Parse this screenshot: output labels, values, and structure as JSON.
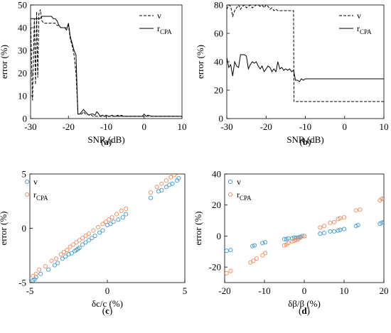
{
  "chart_data": [
    {
      "panel_label": "(a)",
      "type": "line",
      "xlabel": "SNR (dB)",
      "ylabel": "error (%)",
      "xlim": [
        -30,
        10
      ],
      "ylim": [
        0,
        50
      ],
      "xticks": [
        -30,
        -20,
        -10,
        0,
        10
      ],
      "yticks": [
        0,
        10,
        20,
        30,
        40,
        50
      ],
      "grid": false,
      "legend_position": "top-right",
      "series": [
        {
          "name": "v",
          "style": "dashed",
          "color": "#000000",
          "x": [
            -30,
            -29.5,
            -29,
            -28.7,
            -28.4,
            -28.1,
            -27.8,
            -27.4,
            -27,
            -26.5,
            -26,
            -25.5,
            -25,
            -24.5,
            -24,
            -23.5,
            -23,
            -22.5,
            -22,
            -21.5,
            -21,
            -20.5,
            -20,
            -19.5,
            -19,
            -18.5,
            -18,
            -17.5,
            -17,
            -16.5,
            -16,
            -15.5,
            -15,
            -14.5,
            -14,
            -13.5,
            -13,
            -12.5,
            -12,
            -11.5,
            -11,
            -10.5,
            -10,
            -9,
            -8,
            -7,
            -6,
            -5,
            -4,
            -3,
            -2,
            -1,
            0,
            1,
            2,
            4,
            6,
            8,
            10
          ],
          "y": [
            44,
            8,
            44,
            15,
            47,
            18,
            46,
            48,
            43,
            42,
            42,
            42,
            42,
            42,
            42,
            42,
            41,
            41,
            40,
            40,
            40,
            40,
            41,
            35,
            32,
            28,
            20,
            2,
            2,
            2,
            3,
            2,
            2,
            1.5,
            1.5,
            1,
            1,
            1,
            1,
            1,
            1,
            1,
            1,
            1,
            1,
            1,
            1,
            1,
            1,
            1,
            1,
            1,
            1,
            1,
            1,
            1,
            1,
            1,
            1
          ]
        },
        {
          "name": "r_CPA",
          "style": "solid",
          "color": "#000000",
          "x": [
            -30,
            -29.5,
            -29,
            -28.5,
            -28,
            -27.5,
            -27,
            -26.5,
            -26,
            -25.5,
            -25,
            -24.5,
            -24,
            -23.5,
            -23,
            -22.5,
            -22,
            -21.5,
            -21,
            -20.5,
            -20,
            -19.5,
            -19,
            -18.5,
            -18,
            -17.5,
            -17,
            -16.5,
            -16,
            -15.5,
            -15,
            -14.5,
            -14,
            -13.5,
            -13,
            -12.5,
            -12,
            -11.5,
            -11,
            -10.5,
            -10,
            -9.5,
            -9,
            -8.5,
            -8,
            -7.5,
            -7,
            -6.5,
            -6,
            -5.5,
            -5,
            -4.5,
            -4,
            -3,
            -2,
            -1,
            -0.5,
            0,
            0.5,
            1,
            2,
            4,
            6,
            8,
            10
          ],
          "y": [
            44,
            44,
            44,
            44,
            44,
            44,
            45,
            45,
            45,
            45,
            45,
            45,
            44,
            44,
            43,
            41,
            40,
            40,
            40,
            39,
            42,
            36,
            33,
            30,
            28,
            2,
            2,
            3,
            4,
            3,
            2,
            1.5,
            2,
            2,
            1.5,
            3,
            2,
            1,
            1.5,
            1,
            1.5,
            1,
            1,
            1.5,
            1,
            1,
            1.5,
            1,
            1.5,
            1,
            1,
            1,
            1,
            1,
            1,
            1,
            1,
            2,
            1,
            1.5,
            1,
            1,
            1,
            1,
            1
          ]
        }
      ]
    },
    {
      "panel_label": "(b)",
      "type": "line",
      "xlabel": "SNR (dB)",
      "ylabel": "error (%)",
      "xlim": [
        -30,
        10
      ],
      "ylim": [
        0,
        80
      ],
      "xticks": [
        -30,
        -20,
        -10,
        0,
        10
      ],
      "yticks": [
        0,
        20,
        40,
        60,
        80
      ],
      "grid": false,
      "legend_position": "top-right",
      "series": [
        {
          "name": "v",
          "style": "dashed",
          "color": "#000000",
          "x": [
            -30,
            -29.5,
            -29,
            -28.5,
            -28,
            -27.5,
            -27,
            -26.5,
            -26,
            -25.5,
            -25,
            -24.5,
            -24,
            -23.5,
            -23,
            -22.5,
            -22,
            -21.5,
            -21,
            -20.5,
            -20,
            -19.5,
            -19,
            -18.5,
            -18,
            -17.5,
            -17,
            -16.5,
            -16,
            -15.5,
            -15,
            -14.5,
            -14,
            -13.5,
            -13,
            -12.9,
            -12,
            -10,
            -5,
            0,
            5,
            10
          ],
          "y": [
            77,
            80,
            79,
            72,
            76,
            78,
            80,
            77,
            79,
            80,
            78,
            79,
            80,
            78,
            79,
            80,
            80,
            79,
            80,
            78,
            80,
            79,
            77,
            78,
            76,
            77,
            76,
            76,
            76,
            76,
            76,
            76,
            76,
            76,
            76,
            12,
            12,
            12,
            12,
            12,
            12,
            12
          ]
        },
        {
          "name": "r_CPA",
          "style": "solid",
          "color": "#000000",
          "x": [
            -30,
            -29.5,
            -29,
            -28.5,
            -28,
            -27.5,
            -27,
            -26.5,
            -26,
            -25.5,
            -25,
            -24.5,
            -24,
            -23.5,
            -23,
            -22.5,
            -22,
            -21.5,
            -21,
            -20.5,
            -20,
            -19.5,
            -19,
            -18.5,
            -18,
            -17.5,
            -17,
            -16.5,
            -16,
            -15.5,
            -15,
            -14.5,
            -14,
            -13.5,
            -13,
            -12.5,
            -12,
            -11.5,
            -11,
            -10.5,
            -10,
            -9,
            -8,
            -6,
            -4,
            -2,
            0,
            2,
            4,
            6,
            8,
            10
          ],
          "y": [
            43,
            36,
            38,
            30,
            40,
            37,
            36,
            45,
            45,
            45,
            44,
            35,
            38,
            40,
            39,
            40,
            37,
            35,
            37,
            33,
            35,
            37,
            36,
            33,
            35,
            33,
            40,
            35,
            36,
            34,
            35,
            34,
            35,
            33,
            34,
            27,
            27,
            26,
            28,
            27,
            28,
            28,
            28,
            28,
            28,
            28,
            28,
            28,
            28,
            28,
            28,
            28
          ]
        }
      ]
    },
    {
      "panel_label": "(c)",
      "type": "scatter",
      "xlabel": "δc/c (%)",
      "ylabel": "error (%)",
      "xlim": [
        -5,
        5
      ],
      "ylim": [
        -5,
        5
      ],
      "xticks": [
        -5,
        0,
        5
      ],
      "yticks": [
        -5,
        0,
        5
      ],
      "grid": false,
      "legend_position": "top-left",
      "series": [
        {
          "name": "v",
          "color": "#3d9ad1",
          "x": [
            -4.8,
            -4.7,
            -4.6,
            -4.3,
            -3.8,
            -3.4,
            -3.2,
            -2.9,
            -2.7,
            -2.5,
            -2.3,
            -2.1,
            -2.0,
            -1.9,
            -1.8,
            -1.6,
            -1.4,
            -1.2,
            -1.0,
            -0.8,
            -0.5,
            -0.3,
            0.0,
            0.2,
            0.4,
            0.7,
            1.0,
            1.2,
            2.8,
            3.3,
            3.5,
            3.8,
            4.0,
            4.2,
            4.5,
            4.6
          ],
          "y": [
            -4.8,
            -4.7,
            -4.5,
            -4.2,
            -3.8,
            -3.4,
            -3.2,
            -2.8,
            -2.6,
            -2.4,
            -2.3,
            -2.1,
            -2.0,
            -1.9,
            -1.8,
            -1.5,
            -1.3,
            -1.1,
            -0.9,
            -0.7,
            -0.4,
            -0.2,
            0.3,
            0.4,
            0.6,
            0.8,
            1.0,
            1.3,
            2.8,
            3.4,
            3.5,
            3.8,
            4.0,
            4.1,
            4.4,
            4.6
          ]
        },
        {
          "name": "r_CPA",
          "color": "#ee8a5a",
          "x": [
            -4.8,
            -4.6,
            -4.4,
            -4.0,
            -3.6,
            -3.3,
            -3.0,
            -2.8,
            -2.6,
            -2.4,
            -2.2,
            -2.0,
            -1.8,
            -1.6,
            -1.4,
            -1.2,
            -0.9,
            -0.6,
            -0.3,
            -0.1,
            0.1,
            0.3,
            0.6,
            0.9,
            1.2,
            2.8,
            3.2,
            3.5,
            3.8,
            4.1,
            4.3,
            4.5
          ],
          "y": [
            -4.4,
            -4.2,
            -3.8,
            -3.5,
            -3.0,
            -2.8,
            -2.4,
            -2.2,
            -2.0,
            -1.7,
            -1.5,
            -1.3,
            -1.1,
            -0.9,
            -0.7,
            -0.5,
            -0.2,
            0.1,
            0.4,
            0.6,
            0.8,
            1.0,
            1.3,
            1.6,
            1.8,
            3.3,
            3.8,
            4.1,
            4.4,
            4.7,
            4.9,
            5.1
          ]
        }
      ]
    },
    {
      "panel_label": "(d)",
      "type": "scatter",
      "xlabel": "δβ/β (%)",
      "ylabel": "error (%)",
      "xlim": [
        -20,
        20
      ],
      "ylim": [
        -30,
        40
      ],
      "xticks": [
        -20,
        -10,
        0,
        10,
        20
      ],
      "yticks": [
        -20,
        0,
        20,
        40
      ],
      "grid": false,
      "legend_position": "top-left",
      "series": [
        {
          "name": "v",
          "color": "#3d9ad1",
          "x": [
            -19.5,
            -18.5,
            -13,
            -12.5,
            -10.5,
            -9.8,
            -5,
            -4.5,
            -4,
            -3,
            -2.5,
            -2,
            -1.5,
            -1,
            -0.5,
            0,
            4,
            5,
            6.5,
            7.5,
            8.5,
            9,
            10,
            13,
            13.5,
            19,
            19.5,
            20
          ],
          "y": [
            -9.5,
            -9,
            -6.5,
            -6,
            -4.5,
            -4,
            -2,
            -2,
            -1.5,
            -1.5,
            -1,
            -1,
            -1,
            -0.5,
            0,
            0,
            1.5,
            2,
            3,
            3,
            3.5,
            4,
            4.5,
            6.5,
            7,
            8,
            8.5,
            9
          ]
        },
        {
          "name": "r_CPA",
          "color": "#ee8a5a",
          "x": [
            -19.5,
            -18.5,
            -13.5,
            -12.8,
            -12,
            -10.5,
            -9.8,
            -5,
            -4.5,
            -4,
            -3,
            -2.5,
            -2,
            -1.5,
            -1,
            0,
            4,
            5,
            6.5,
            7.5,
            8.5,
            9,
            10,
            13,
            14,
            19,
            19.5,
            20
          ],
          "y": [
            -24,
            -22.5,
            -17,
            -16,
            -14.5,
            -12.5,
            -11,
            -6,
            -5.5,
            -4.5,
            -3.5,
            -3,
            -2.5,
            -2,
            -1,
            0,
            5.5,
            6.5,
            8.5,
            9,
            11,
            11.5,
            12,
            16.5,
            17,
            23,
            24,
            24
          ]
        }
      ]
    }
  ]
}
